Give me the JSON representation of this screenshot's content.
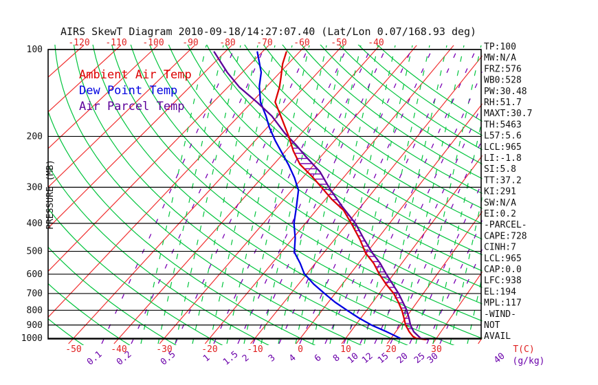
{
  "title": "AIRS SkewT Diagram 2010-09-18/14:27:07.40 (Lat/Lon 0.07/168.93 deg)",
  "legend": {
    "ambient": "Ambient Air Temp",
    "dew_point": "Dew Point Temp",
    "parcel": "Air Parcel Temp"
  },
  "axes": {
    "pressure_label": "PRESSURE (MB)",
    "pressure_ticks": [
      "100",
      "200",
      "300",
      "400",
      "500",
      "600",
      "700",
      "800",
      "900",
      "1000"
    ],
    "temp_ticks_top": [
      "-120",
      "-110",
      "-100",
      "-90",
      "-80",
      "-70",
      "-60",
      "-50",
      "-40"
    ],
    "temp_ticks_bottom": [
      "-50",
      "-40",
      "-30",
      "-20",
      "-10",
      "0",
      "10",
      "20",
      "30"
    ],
    "temp_unit_label": "T(C)",
    "mixing_unit_label": "(g/kg)",
    "mixing_ticks": [
      {
        "label": "0.1",
        "x": 140
      },
      {
        "label": "0.2",
        "x": 183
      },
      {
        "label": "0.5",
        "x": 247
      },
      {
        "label": "1",
        "x": 303
      },
      {
        "label": "1.5",
        "x": 338
      },
      {
        "label": "2",
        "x": 360
      },
      {
        "label": "3",
        "x": 398
      },
      {
        "label": "4",
        "x": 428
      },
      {
        "label": "6",
        "x": 465
      },
      {
        "label": "8",
        "x": 492
      },
      {
        "label": "10",
        "x": 516
      },
      {
        "label": "12",
        "x": 537
      },
      {
        "label": "15",
        "x": 560
      },
      {
        "label": "20",
        "x": 588
      },
      {
        "label": "25",
        "x": 613
      },
      {
        "label": "30",
        "x": 632
      },
      {
        "label": "40",
        "x": 729
      }
    ]
  },
  "stats_panel": {
    "lines": [
      "TP:100",
      "MW:N/A",
      "FRZ:576",
      "WB0:528",
      "PW:30.48",
      "RH:51.7",
      "MAXT:30.7",
      "TH:5463",
      "L57:5.6",
      "LCL:965",
      "LI:-1.8",
      "SI:5.8",
      "TT:37.2",
      "KI:291",
      "SW:N/A",
      "EI:0.2",
      "-PARCEL-",
      "CAPE:728",
      "CINH:7",
      "LCL:965",
      "CAP:0.0",
      "LFC:938",
      "EL:194",
      "MPL:117",
      "-WIND-",
      "NOT",
      "AVAIL"
    ]
  },
  "colors": {
    "isotherm": "#f03030",
    "dry_adiabat": "#00c43c",
    "moist_adiabat": "#00c43c",
    "mixing_ratio": "#7a00b4",
    "ambient": "#dc0000",
    "dew_point": "#0000e0",
    "parcel": "#5c0099",
    "grid": "#000000",
    "label_red": "#e02020",
    "label_purple": "#6a00aa"
  },
  "chart_data": {
    "type": "line",
    "title": "AIRS SkewT Diagram 2010-09-18/14:27:07.40 (Lat/Lon 0.07/168.93 deg)",
    "xlabel": "Temperature (C)",
    "ylabel": "Pressure (mb)",
    "y_scale": "log",
    "ylim": [
      1000,
      100
    ],
    "xlim_bottom_axis": [
      -50,
      40
    ],
    "legend_position": "top-left",
    "series": [
      {
        "name": "Ambient Air Temp",
        "points": [
          {
            "p": 102,
            "t": -63.5
          },
          {
            "p": 112,
            "t": -61.5
          },
          {
            "p": 125,
            "t": -58.5
          },
          {
            "p": 135,
            "t": -56.5
          },
          {
            "p": 152,
            "t": -54.0
          },
          {
            "p": 175,
            "t": -48.0
          },
          {
            "p": 200,
            "t": -42.5
          },
          {
            "p": 225,
            "t": -38.0
          },
          {
            "p": 250,
            "t": -33.5
          },
          {
            "p": 275,
            "t": -28.0
          },
          {
            "p": 300,
            "t": -23.4
          },
          {
            "p": 330,
            "t": -18.5
          },
          {
            "p": 360,
            "t": -13.5
          },
          {
            "p": 405,
            "t": -8.6
          },
          {
            "p": 455,
            "t": -4.0
          },
          {
            "p": 507,
            "t": -0.2
          },
          {
            "p": 550,
            "t": 3.5
          },
          {
            "p": 598,
            "t": 6.6
          },
          {
            "p": 650,
            "t": 10.0
          },
          {
            "p": 700,
            "t": 13.3
          },
          {
            "p": 750,
            "t": 15.8
          },
          {
            "p": 800,
            "t": 17.9
          },
          {
            "p": 850,
            "t": 19.6
          },
          {
            "p": 900,
            "t": 21.1
          },
          {
            "p": 950,
            "t": 23.0
          },
          {
            "p": 985,
            "t": 24.5
          },
          {
            "p": 1000,
            "t": 25.5
          },
          {
            "p": 1010,
            "t": 27.8
          }
        ]
      },
      {
        "name": "Dew Point Temp",
        "points": [
          {
            "p": 102,
            "t": -71.3
          },
          {
            "p": 120,
            "t": -65.0
          },
          {
            "p": 134,
            "t": -62.0
          },
          {
            "p": 152,
            "t": -57.8
          },
          {
            "p": 170,
            "t": -53.0
          },
          {
            "p": 186,
            "t": -49.5
          },
          {
            "p": 207,
            "t": -44.9
          },
          {
            "p": 228,
            "t": -40.5
          },
          {
            "p": 251,
            "t": -36.2
          },
          {
            "p": 278,
            "t": -32.0
          },
          {
            "p": 307,
            "t": -28.4
          },
          {
            "p": 350,
            "t": -25.5
          },
          {
            "p": 400,
            "t": -22.7
          },
          {
            "p": 450,
            "t": -19.5
          },
          {
            "p": 503,
            "t": -17.0
          },
          {
            "p": 550,
            "t": -13.5
          },
          {
            "p": 598,
            "t": -10.6
          },
          {
            "p": 650,
            "t": -6.5
          },
          {
            "p": 700,
            "t": -2.4
          },
          {
            "p": 750,
            "t": 1.5
          },
          {
            "p": 800,
            "t": 5.6
          },
          {
            "p": 850,
            "t": 9.5
          },
          {
            "p": 900,
            "t": 13.5
          },
          {
            "p": 950,
            "t": 18.0
          },
          {
            "p": 1000,
            "t": 22.0
          }
        ]
      },
      {
        "name": "Air Parcel Temp",
        "points": [
          {
            "p": 102,
            "t": -82.9
          },
          {
            "p": 120,
            "t": -74.0
          },
          {
            "p": 135,
            "t": -67.0
          },
          {
            "p": 153,
            "t": -58.3
          },
          {
            "p": 170,
            "t": -51.5
          },
          {
            "p": 195,
            "t": -44.2
          },
          {
            "p": 215,
            "t": -38.5
          },
          {
            "p": 235,
            "t": -33.7
          },
          {
            "p": 265,
            "t": -27.0
          },
          {
            "p": 304,
            "t": -21.0
          },
          {
            "p": 350,
            "t": -14.5
          },
          {
            "p": 400,
            "t": -8.1
          },
          {
            "p": 455,
            "t": -3.0
          },
          {
            "p": 507,
            "t": 1.4
          },
          {
            "p": 550,
            "t": 5.0
          },
          {
            "p": 598,
            "t": 8.2
          },
          {
            "p": 650,
            "t": 11.5
          },
          {
            "p": 700,
            "t": 14.4
          },
          {
            "p": 750,
            "t": 16.8
          },
          {
            "p": 800,
            "t": 19.0
          },
          {
            "p": 850,
            "t": 20.7
          },
          {
            "p": 900,
            "t": 22.2
          },
          {
            "p": 950,
            "t": 24.0
          },
          {
            "p": 1000,
            "t": 26.5
          },
          {
            "p": 1010,
            "t": 28.2
          }
        ]
      }
    ],
    "annotations": {
      "equilibrium_level_mb": 194,
      "lcl_mb": 965,
      "lfc_mb": 938,
      "cape_hatched_region": "between ambient and parcel curves from ~200mb to ~950mb"
    }
  }
}
